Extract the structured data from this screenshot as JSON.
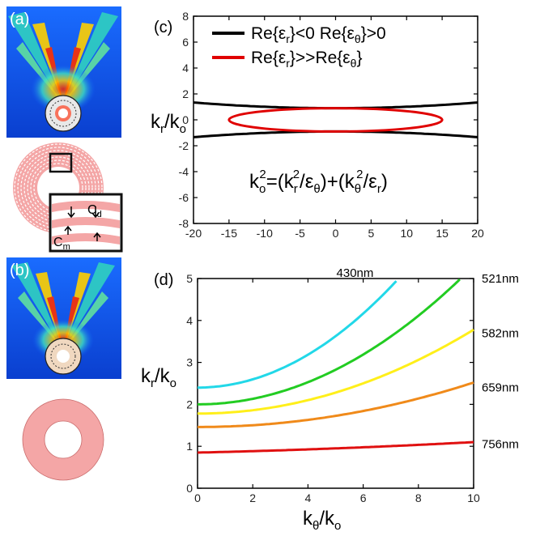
{
  "panels": {
    "a": "(a)",
    "b": "(b)",
    "c": "(c)",
    "d": "(d)"
  },
  "inset": {
    "cd": "C",
    "cd_sub": "d",
    "cm": "C",
    "cm_sub": "m"
  },
  "colors": {
    "ring": "#f4a6a6",
    "ring_dark": "#c96b6b",
    "black_curve": "#000000",
    "red_curve": "#e00000",
    "cyan": "#22d8e8",
    "green": "#22cc22",
    "yellow": "#ffef1a",
    "orange": "#f08a1a",
    "red": "#e01010"
  },
  "chart_data": [
    {
      "type": "line",
      "panel": "(c)",
      "xlim": [
        -20,
        20
      ],
      "ylim": [
        -8,
        8
      ],
      "xticks": [
        -20,
        -15,
        -10,
        -5,
        0,
        5,
        10,
        15,
        20
      ],
      "yticks": [
        -8,
        -6,
        -4,
        -2,
        0,
        2,
        4,
        6,
        8
      ],
      "ylabel": "k",
      "ylabel_sub1": "r",
      "ylabel_mid": "/k",
      "ylabel_sub2": "o",
      "legend": [
        {
          "text": "Re{ε",
          "sub1": "r",
          "mid": "}<0  Re{ε",
          "sub2": "θ",
          "tail": "}>0",
          "color": "#000000"
        },
        {
          "text": "Re{ε",
          "sub1": "r",
          "mid": "}>>Re{ε",
          "sub2": "θ",
          "tail": "}",
          "color": "#e00000"
        }
      ],
      "equation": {
        "p1": "k",
        "p1_sub": "o",
        "p1_sup": "2",
        "p2": "=(k",
        "p2_sub": "r",
        "p2_sup": "2",
        "p3": "/ε",
        "p3_sub": "θ",
        "p4": ")+(k",
        "p4_sub": "θ",
        "p4_sup": "2",
        "p5": "/ε",
        "p5_sub": "r",
        "p6": ")"
      },
      "series": [
        {
          "kind": "hyperbola",
          "vertex": 0.9,
          "asymptote_slope": 0.03,
          "color": "#000000"
        },
        {
          "kind": "ellipse",
          "semi_x": 15,
          "semi_y": 0.9,
          "color": "#e00000"
        }
      ]
    },
    {
      "type": "line",
      "panel": "(d)",
      "xlim": [
        0,
        10
      ],
      "ylim": [
        0,
        5
      ],
      "xticks": [
        0,
        2,
        4,
        6,
        8,
        10
      ],
      "yticks": [
        0,
        1,
        2,
        3,
        4,
        5
      ],
      "xlabel": "k",
      "xlabel_sub1": "θ",
      "xlabel_mid": "/k",
      "xlabel_sub2": "o",
      "ylabel": "k",
      "ylabel_sub1": "r",
      "ylabel_mid": "/k",
      "ylabel_sub2": "o",
      "series": [
        {
          "name": "430nm",
          "y0": 2.4,
          "slope": 0.49,
          "color": "#22d8e8"
        },
        {
          "name": "521nm",
          "y0": 2.0,
          "slope": 0.33,
          "color": "#22cc22"
        },
        {
          "name": "582nm",
          "y0": 1.78,
          "slope": 0.2,
          "color": "#ffef1a"
        },
        {
          "name": "659nm",
          "y0": 1.46,
          "slope": 0.106,
          "color": "#f08a1a"
        },
        {
          "name": "756nm",
          "y0": 0.85,
          "slope": 0.01,
          "color": "#e01010"
        }
      ]
    }
  ]
}
